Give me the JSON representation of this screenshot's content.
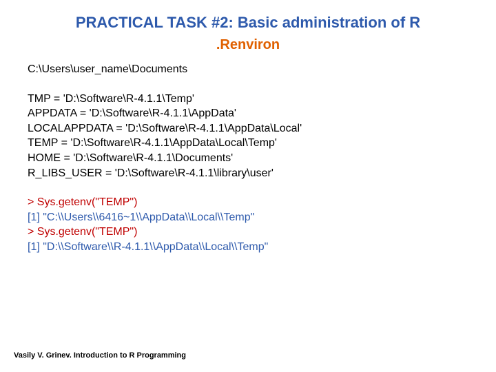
{
  "colors": {
    "title": "#2e5aac",
    "subtitle": "#e06000",
    "text_black": "#000000",
    "console_red": "#c00000",
    "console_blue": "#2e5aac"
  },
  "header": {
    "title": "PRACTICAL TASK #2: Basic administration of R",
    "subtitle": ".Renviron"
  },
  "content": {
    "path": "C:\\Users\\user_name\\Documents",
    "env_lines": [
      "TMP = 'D:\\Software\\R-4.1.1\\Temp'",
      "APPDATA = 'D:\\Software\\R-4.1.1\\AppData'",
      "LOCALAPPDATA = 'D:\\Software\\R-4.1.1\\AppData\\Local'",
      "TEMP = 'D:\\Software\\R-4.1.1\\AppData\\Local\\Temp'",
      "HOME = 'D:\\Software\\R-4.1.1\\Documents'",
      "R_LIBS_USER = 'D:\\Software\\R-4.1.1\\library\\user'"
    ],
    "console": [
      {
        "text": "> Sys.getenv(\"TEMP\")",
        "color": "console_red"
      },
      {
        "text": "[1] \"C:\\\\Users\\\\6416~1\\\\AppData\\\\Local\\\\Temp\"",
        "color": "console_blue"
      },
      {
        "text": "> Sys.getenv(\"TEMP\")",
        "color": "console_red"
      },
      {
        "text": "[1] \"D:\\\\Software\\\\R-4.1.1\\\\AppData\\\\Local\\\\Temp\"",
        "color": "console_blue"
      }
    ]
  },
  "footer": "Vasily V. Grinev. Introduction to R Programming"
}
